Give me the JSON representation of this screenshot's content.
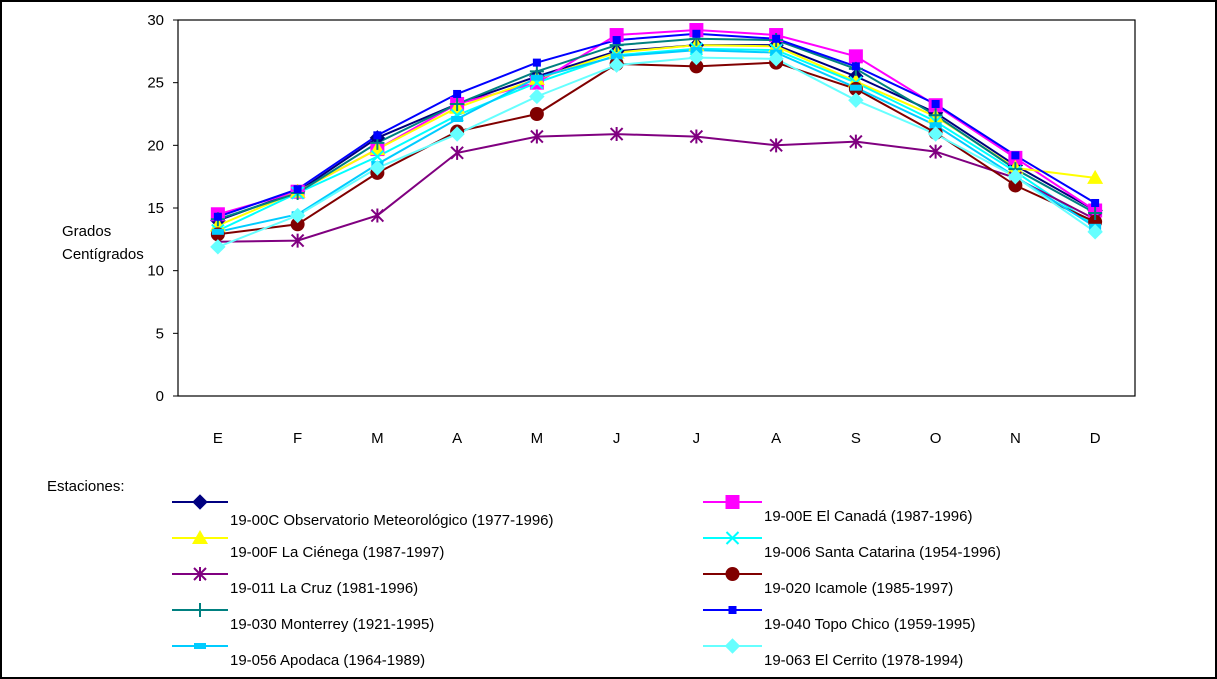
{
  "chart_data": {
    "type": "line",
    "title": "",
    "xlabel": "",
    "ylabel": [
      "Grados",
      "Centígrados"
    ],
    "ylim": [
      0,
      30
    ],
    "yticks": [
      0,
      5,
      10,
      15,
      20,
      25,
      30
    ],
    "grid": false,
    "legend_title": "Estaciones:",
    "legend_position": "bottom",
    "categories": [
      "E",
      "F",
      "M",
      "A",
      "M",
      "J",
      "J",
      "A",
      "S",
      "O",
      "N",
      "D"
    ],
    "series": [
      {
        "name": "19-00C Observatorio Meteorológico (1977-1996)",
        "color": "#000080",
        "marker": "diamond",
        "values": [
          14.0,
          16.3,
          20.6,
          23.3,
          25.5,
          27.5,
          28.0,
          28.0,
          25.5,
          22.6,
          18.4,
          14.8
        ]
      },
      {
        "name": "19-00E El Canadá (1987-1996)",
        "color": "#ff00ff",
        "marker": "square",
        "values": [
          14.5,
          16.3,
          19.7,
          23.3,
          25.0,
          28.8,
          29.2,
          28.8,
          27.1,
          23.2,
          19.0,
          14.8
        ]
      },
      {
        "name": "19-00F La Ciénega (1987-1997)",
        "color": "#ffff00",
        "marker": "triangle",
        "values": [
          13.6,
          16.3,
          19.7,
          23.0,
          25.3,
          27.4,
          28.0,
          27.9,
          25.1,
          22.3,
          18.2,
          17.4
        ]
      },
      {
        "name": "19-006 Santa Catarina (1954-1996)",
        "color": "#00ffff",
        "marker": "x",
        "values": [
          13.2,
          16.2,
          19.1,
          22.4,
          25.0,
          27.2,
          27.7,
          27.6,
          25.0,
          21.9,
          17.9,
          13.6
        ]
      },
      {
        "name": "19-011 La Cruz (1981-1996)",
        "color": "#800080",
        "marker": "star",
        "values": [
          12.3,
          12.4,
          14.4,
          19.4,
          20.7,
          20.9,
          20.7,
          20.0,
          20.3,
          19.5,
          17.4,
          14.1
        ]
      },
      {
        "name": "19-020 Icamole (1985-1997)",
        "color": "#800000",
        "marker": "circle",
        "values": [
          12.9,
          13.7,
          17.8,
          21.1,
          22.5,
          26.5,
          26.3,
          26.6,
          24.5,
          21.0,
          16.8,
          13.9
        ]
      },
      {
        "name": "19-030 Monterrey (1921-1995)",
        "color": "#008080",
        "marker": "plus",
        "values": [
          14.1,
          16.2,
          20.2,
          23.3,
          25.9,
          28.0,
          28.5,
          28.4,
          26.1,
          22.4,
          18.1,
          14.6
        ]
      },
      {
        "name": "19-040 Topo Chico (1959-1995)",
        "color": "#0000ff",
        "marker": "smallsquare",
        "values": [
          14.3,
          16.5,
          20.8,
          24.1,
          26.6,
          28.4,
          28.9,
          28.5,
          26.3,
          23.3,
          19.2,
          15.4
        ]
      },
      {
        "name": "19-056 Apodaca (1964-1989)",
        "color": "#00ccff",
        "marker": "dash",
        "values": [
          13.1,
          14.5,
          18.5,
          22.1,
          25.4,
          27.1,
          27.6,
          27.4,
          24.6,
          21.6,
          17.5,
          13.5
        ]
      },
      {
        "name": "19-063 El Cerrito (1978-1994)",
        "color": "#66ffff",
        "marker": "diamond",
        "values": [
          11.9,
          14.4,
          18.2,
          20.9,
          23.9,
          26.4,
          27.0,
          26.9,
          23.6,
          20.9,
          17.5,
          13.1
        ]
      }
    ]
  }
}
